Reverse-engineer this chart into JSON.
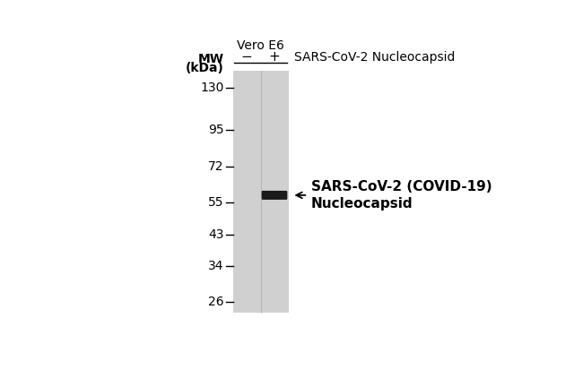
{
  "bg_color": "#ffffff",
  "gel_color": "#d0d0d0",
  "mw_markers": [
    130,
    95,
    72,
    55,
    43,
    34,
    26
  ],
  "mw_label_line1": "MW",
  "mw_label_line2": "(kDa)",
  "band_kda": 58,
  "band_color": "#1a1a1a",
  "vero_label": "Vero E6",
  "lane_labels": [
    "−",
    "+"
  ],
  "top_label": "SARS-CoV-2 Nucleocapsid",
  "arrow_label_line1": "SARS-CoV-2 (COVID-19)",
  "arrow_label_line2": "Nucleocapsid",
  "arrow_color": "#000000",
  "font_size_mw_num": 10,
  "font_size_mw_label": 10,
  "font_size_lane": 11,
  "font_size_band_label": 11,
  "font_size_vero": 10,
  "font_size_top": 10
}
